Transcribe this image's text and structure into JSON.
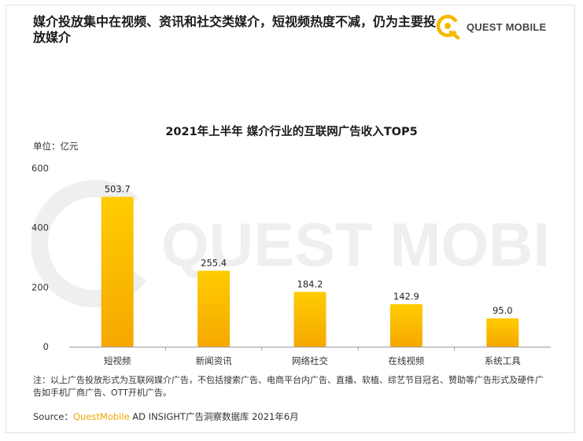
{
  "header": {
    "title": "媒介投放集中在视频、资讯和社交类媒介，短视频热度不减，仍为主要投放媒介",
    "logo_text": "QUEST MOBILE"
  },
  "watermark_text": "QUEST MOBILE",
  "chart_data": {
    "type": "bar",
    "title": "2021年上半年 媒介行业的互联网广告收入TOP5",
    "unit_label": "单位：亿元",
    "categories": [
      "短视频",
      "新闻资讯",
      "网络社交",
      "在线视频",
      "系统工具"
    ],
    "values": [
      503.7,
      255.4,
      184.2,
      142.9,
      95.0
    ],
    "value_labels": [
      "503.7",
      "255.4",
      "184.2",
      "142.9",
      "95.0"
    ],
    "y_ticks": [
      0,
      200,
      400,
      600
    ],
    "ylim": [
      0,
      600
    ],
    "grid": false,
    "bar_color_top": "#ffcc00",
    "bar_color_bottom": "#f5a800"
  },
  "footer": {
    "note": "注：以上广告投放形式为互联网媒介广告，不包括搜索广告、电商平台内广告、直播、软植、综艺节目冠名、赞助等广告形式及硬件广告如手机厂商广告、OTT开机广告。",
    "source_prefix": "Source：",
    "source_brand": "QuestMobile",
    "source_rest": " AD INSIGHT广告洞察数据库 2021年6月"
  }
}
